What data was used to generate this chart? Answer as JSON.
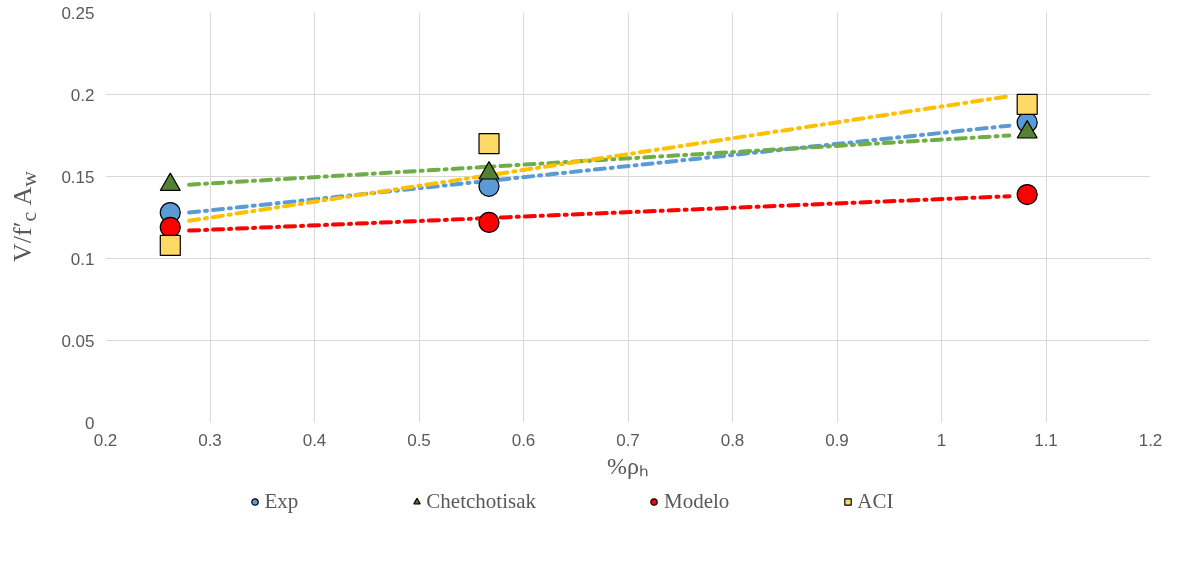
{
  "chart_data": {
    "type": "scatter",
    "xlabel": "%ρₕ",
    "ylabel": "V/f′$_{c}$ A$_{w}$",
    "xlim": [
      0.2,
      1.2
    ],
    "xticks": [
      0.2,
      0.3,
      0.4,
      0.5,
      0.6,
      0.7,
      0.8,
      0.9,
      1,
      1.1,
      1.2
    ],
    "ylim": [
      0,
      0.25
    ],
    "yticks": [
      0,
      0.05,
      0.1,
      0.15,
      0.2,
      0.25
    ],
    "grid": true,
    "legend": "bottom",
    "series": [
      {
        "type": "line",
        "x": [
          0.28,
          1.065
        ],
        "values": [
          0.128,
          0.181
        ],
        "color": "#5b9bd5",
        "line_style": "dashdot"
      },
      {
        "type": "line",
        "x": [
          0.28,
          1.065
        ],
        "values": [
          0.145,
          0.175
        ],
        "color": "#70ad47",
        "line_style": "dashdot"
      },
      {
        "type": "line",
        "x": [
          0.28,
          1.065
        ],
        "values": [
          0.117,
          0.138
        ],
        "color": "#ff0000",
        "line_style": "dashdot"
      },
      {
        "type": "line",
        "x": [
          0.28,
          1.065
        ],
        "values": [
          0.123,
          0.199
        ],
        "color": "#ffc000",
        "line_style": "dashdot"
      },
      {
        "name": "Exp",
        "marker": "circle",
        "x": [
          0.262,
          0.567,
          1.082
        ],
        "values": [
          0.128,
          0.144,
          0.183
        ],
        "color": "#5b9bd5"
      },
      {
        "name": "Chetchotisak",
        "marker": "triangle",
        "x": [
          0.262,
          0.567,
          1.082
        ],
        "values": [
          0.145,
          0.152,
          0.177
        ],
        "color": "#548235"
      },
      {
        "name": "Modelo",
        "marker": "circle",
        "x": [
          0.262,
          0.567,
          1.082
        ],
        "values": [
          0.119,
          0.122,
          0.139
        ],
        "color": "#ff0000"
      },
      {
        "name": "ACI",
        "marker": "square",
        "x": [
          0.262,
          0.567,
          1.082
        ],
        "values": [
          0.108,
          0.17,
          0.194
        ],
        "color": "#ffd966"
      }
    ]
  }
}
